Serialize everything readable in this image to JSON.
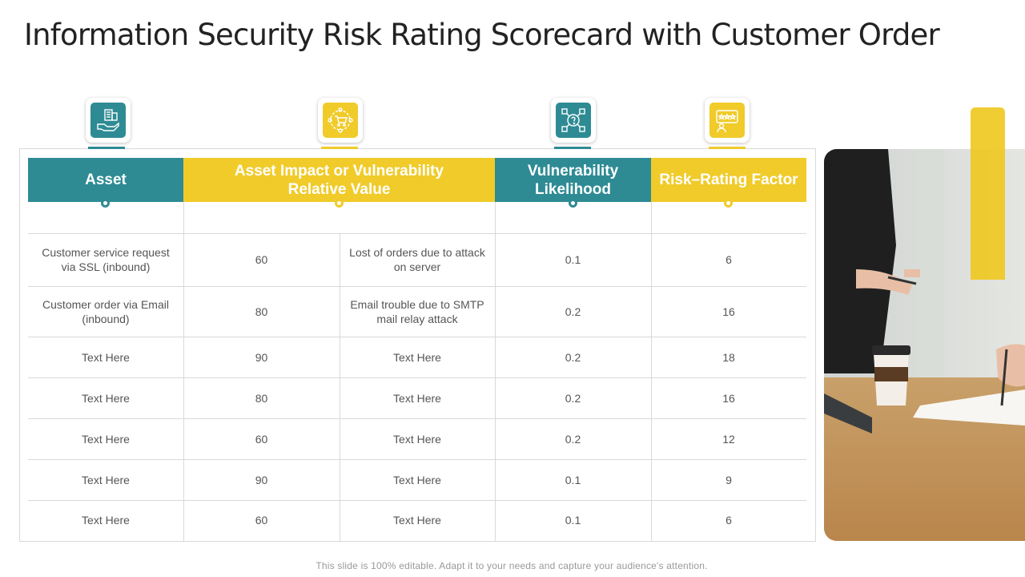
{
  "title": "Information Security Risk Rating Scorecard with Customer Order",
  "headers": [
    "Asset",
    "Asset Impact or Vulnerability Relative Value",
    "Vulnerability Likelihood",
    "Risk–Rating Factor"
  ],
  "icons": [
    "hand-building-icon",
    "shopping-cart-network-icon",
    "question-gear-network-icon",
    "rating-stars-user-icon"
  ],
  "colors": {
    "teal": "#2e8b94",
    "yellow": "#f0cb2a"
  },
  "rows": [
    {
      "asset": "Customer service request via SSL (inbound)",
      "value": "60",
      "impact": "Lost of orders due to attack on server",
      "likelihood": "0.1",
      "factor": "6"
    },
    {
      "asset": "Customer order via Email (inbound)",
      "value": "80",
      "impact": "Email trouble due to SMTP mail relay attack",
      "likelihood": "0.2",
      "factor": "16"
    },
    {
      "asset": "Text Here",
      "value": "90",
      "impact": "Text Here",
      "likelihood": "0.2",
      "factor": "18"
    },
    {
      "asset": "Text Here",
      "value": "80",
      "impact": "Text Here",
      "likelihood": "0.2",
      "factor": "16"
    },
    {
      "asset": "Text Here",
      "value": "60",
      "impact": "Text Here",
      "likelihood": "0.2",
      "factor": "12"
    },
    {
      "asset": "Text Here",
      "value": "90",
      "impact": "Text Here",
      "likelihood": "0.1",
      "factor": "9"
    },
    {
      "asset": "Text Here",
      "value": "60",
      "impact": "Text Here",
      "likelihood": "0.1",
      "factor": "6"
    }
  ],
  "footer": "This slide is 100% editable. Adapt it to your needs and capture your audience's attention."
}
